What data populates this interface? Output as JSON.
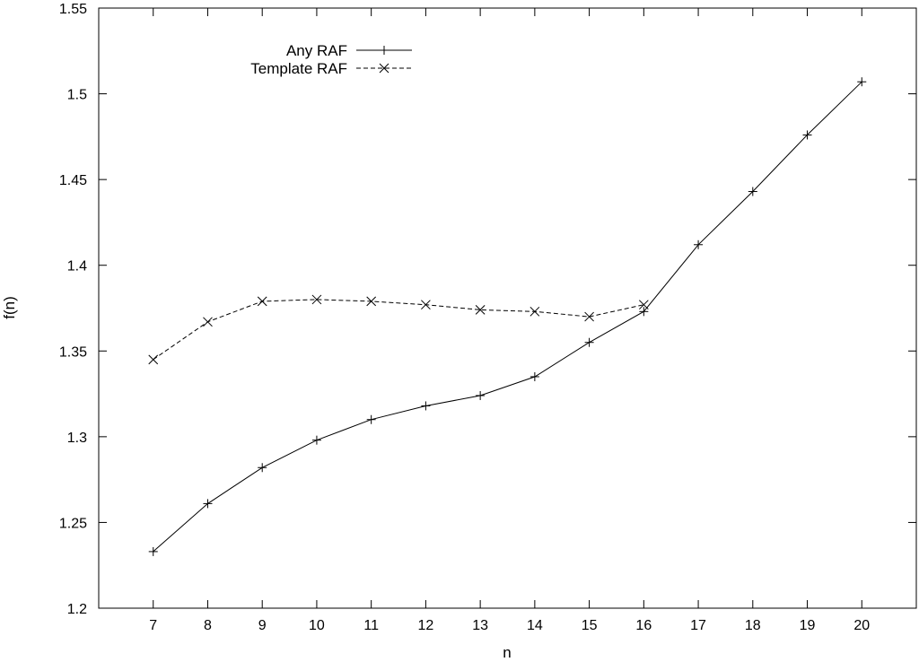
{
  "chart_data": {
    "type": "line",
    "title": "",
    "xlabel": "n",
    "ylabel": "f(n)",
    "xlim": [
      6,
      21
    ],
    "ylim": [
      1.2,
      1.55
    ],
    "x_ticks": [
      7,
      8,
      9,
      10,
      11,
      12,
      13,
      14,
      15,
      16,
      17,
      18,
      19,
      20
    ],
    "y_ticks": [
      1.2,
      1.25,
      1.3,
      1.35,
      1.4,
      1.45,
      1.5,
      1.55
    ],
    "y_tick_labels": [
      "1.2",
      "1.25",
      "1.3",
      "1.35",
      "1.4",
      "1.45",
      "1.5",
      "1.55"
    ],
    "grid": false,
    "legend_position": "top-left",
    "series": [
      {
        "name": "Any RAF",
        "line_style": "solid",
        "marker": "plus",
        "x": [
          7,
          8,
          9,
          10,
          11,
          12,
          13,
          14,
          15,
          16,
          17,
          18,
          19,
          20
        ],
        "y": [
          1.233,
          1.261,
          1.282,
          1.298,
          1.31,
          1.318,
          1.324,
          1.335,
          1.355,
          1.373,
          1.412,
          1.443,
          1.476,
          1.507
        ]
      },
      {
        "name": "Template RAF",
        "line_style": "dashed",
        "marker": "cross",
        "x": [
          7,
          8,
          9,
          10,
          11,
          12,
          13,
          14,
          15,
          16
        ],
        "y": [
          1.345,
          1.367,
          1.379,
          1.38,
          1.379,
          1.377,
          1.374,
          1.373,
          1.37,
          1.377
        ]
      }
    ]
  }
}
